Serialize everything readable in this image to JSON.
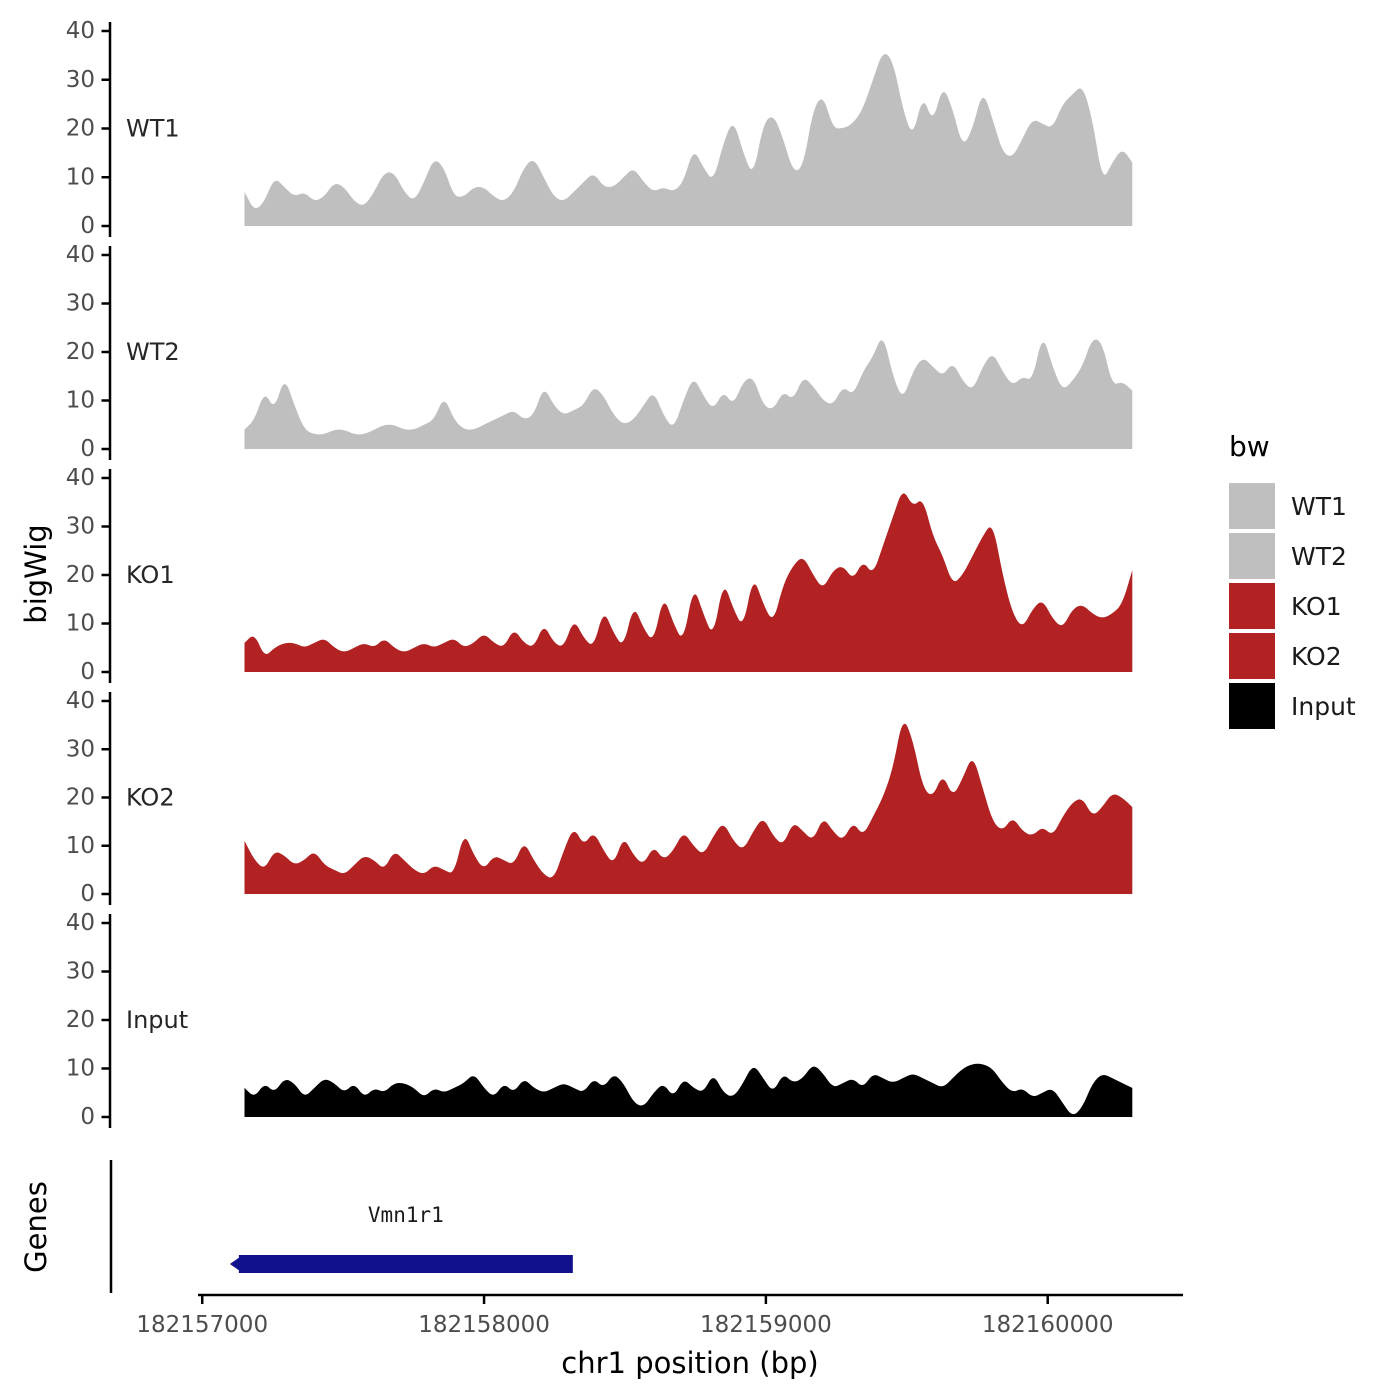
{
  "figure": {
    "y_axis_title": "bigWig",
    "genes_axis_title": "Genes",
    "x_axis_title": "chr1 position (bp)"
  },
  "legend": {
    "title": "bw",
    "items": [
      {
        "label": "WT1",
        "color": "#bfbfbf"
      },
      {
        "label": "WT2",
        "color": "#bfbfbf"
      },
      {
        "label": "KO1",
        "color": "#b22222"
      },
      {
        "label": "KO2",
        "color": "#b22222"
      },
      {
        "label": "Input",
        "color": "#000000"
      }
    ]
  },
  "colors": {
    "background": "#ffffff",
    "axis_line": "#000000",
    "tick_label": "#4d4d4d",
    "track_label": "#262626",
    "gray_track": "#bfbfbf",
    "red_track": "#b22222",
    "black_track": "#000000",
    "gene_bar": "#11118e"
  },
  "chart_data": {
    "type": "area",
    "title": "",
    "xlabel": "chr1 position (bp)",
    "ylabel": "bigWig",
    "x_axis": {
      "ticks": [
        182157000,
        182158000,
        182159000,
        182160000
      ],
      "range": [
        182156985,
        182160480
      ]
    },
    "y_axis": {
      "ticks": [
        0,
        10,
        20,
        30,
        40
      ],
      "range": [
        0,
        40
      ]
    },
    "x_start": 182157150,
    "x_end": 182160300,
    "series": [
      {
        "name": "WT1",
        "color": "#bfbfbf",
        "values": [
          7,
          3,
          5,
          10,
          8,
          6,
          7,
          5,
          6,
          9,
          8,
          5,
          4,
          7,
          11,
          11,
          7,
          5,
          9,
          14,
          12,
          6,
          6,
          8,
          8,
          6,
          5,
          7,
          12,
          14,
          10,
          6,
          5,
          7,
          9,
          11,
          8,
          8,
          10,
          12,
          9,
          7,
          8,
          7,
          9,
          16,
          12,
          9,
          17,
          22,
          15,
          10,
          21,
          23,
          18,
          11,
          12,
          24,
          27,
          20,
          20,
          21,
          24,
          30,
          36,
          34,
          24,
          18,
          27,
          21,
          29,
          24,
          16,
          20,
          28,
          22,
          15,
          14,
          18,
          22,
          21,
          20,
          25,
          27,
          29,
          22,
          9,
          13,
          16,
          13
        ]
      },
      {
        "name": "WT2",
        "color": "#bfbfbf",
        "values": [
          4,
          6,
          12,
          8,
          15,
          9,
          4,
          3,
          3,
          4,
          4,
          3,
          3,
          4,
          5,
          5,
          4,
          4,
          5,
          6,
          11,
          6,
          4,
          4,
          5,
          6,
          7,
          8,
          6,
          7,
          13,
          9,
          7,
          8,
          9,
          13,
          11,
          7,
          5,
          6,
          9,
          12,
          7,
          4,
          10,
          15,
          11,
          8,
          12,
          9,
          14,
          15,
          9,
          8,
          12,
          10,
          15,
          13,
          10,
          9,
          13,
          11,
          16,
          19,
          24,
          15,
          10,
          16,
          19,
          17,
          15,
          18,
          14,
          12,
          17,
          20,
          16,
          13,
          15,
          14,
          24,
          17,
          12,
          14,
          17,
          23,
          22,
          13,
          14,
          12
        ]
      },
      {
        "name": "KO1",
        "color": "#b22222",
        "values": [
          6,
          8,
          3,
          5,
          6,
          6,
          5,
          6,
          7,
          5,
          4,
          5,
          6,
          5,
          7,
          5,
          4,
          5,
          6,
          5,
          6,
          7,
          5,
          6,
          8,
          6,
          5,
          9,
          6,
          5,
          10,
          6,
          5,
          11,
          7,
          5,
          13,
          8,
          5,
          14,
          9,
          6,
          16,
          10,
          6,
          18,
          12,
          7,
          19,
          13,
          9,
          20,
          14,
          10,
          18,
          22,
          24,
          20,
          17,
          21,
          22,
          19,
          23,
          20,
          26,
          32,
          38,
          34,
          36,
          28,
          24,
          18,
          20,
          24,
          28,
          31,
          20,
          12,
          9,
          13,
          15,
          11,
          9,
          13,
          14,
          12,
          11,
          12,
          14,
          21
        ]
      },
      {
        "name": "KO2",
        "color": "#b22222",
        "values": [
          11,
          7,
          5,
          9,
          8,
          6,
          7,
          9,
          6,
          5,
          4,
          6,
          8,
          7,
          5,
          9,
          7,
          5,
          4,
          6,
          5,
          4,
          13,
          8,
          5,
          8,
          7,
          6,
          11,
          7,
          4,
          3,
          9,
          14,
          10,
          13,
          9,
          6,
          12,
          8,
          6,
          10,
          7,
          9,
          13,
          10,
          8,
          12,
          15,
          11,
          9,
          13,
          16,
          12,
          10,
          15,
          13,
          11,
          16,
          13,
          11,
          15,
          12,
          16,
          20,
          26,
          37,
          32,
          22,
          20,
          25,
          20,
          24,
          29,
          22,
          15,
          13,
          16,
          13,
          12,
          14,
          12,
          16,
          19,
          20,
          16,
          18,
          21,
          20,
          18
        ]
      },
      {
        "name": "Input",
        "color": "#000000",
        "values": [
          6,
          4,
          7,
          5,
          8,
          7,
          4,
          6,
          8,
          7,
          5,
          7,
          4,
          6,
          5,
          7,
          7,
          6,
          4,
          6,
          5,
          6,
          7,
          9,
          6,
          4,
          7,
          5,
          8,
          6,
          5,
          6,
          7,
          6,
          5,
          8,
          6,
          9,
          7,
          3,
          2,
          5,
          7,
          4,
          8,
          6,
          5,
          9,
          5,
          4,
          7,
          11,
          8,
          5,
          9,
          7,
          8,
          11,
          9,
          6,
          7,
          8,
          6,
          9,
          8,
          7,
          8,
          9,
          8,
          7,
          6,
          8,
          10,
          11,
          11,
          10,
          7,
          5,
          6,
          4,
          5,
          6,
          3,
          0,
          2,
          7,
          9,
          8,
          7,
          6
        ]
      }
    ],
    "genes_track": {
      "label": "Genes",
      "features": [
        {
          "name": "Vmn1r1",
          "start": 182157130,
          "end": 182158315,
          "strand": "-",
          "color": "#11118e"
        }
      ]
    }
  }
}
